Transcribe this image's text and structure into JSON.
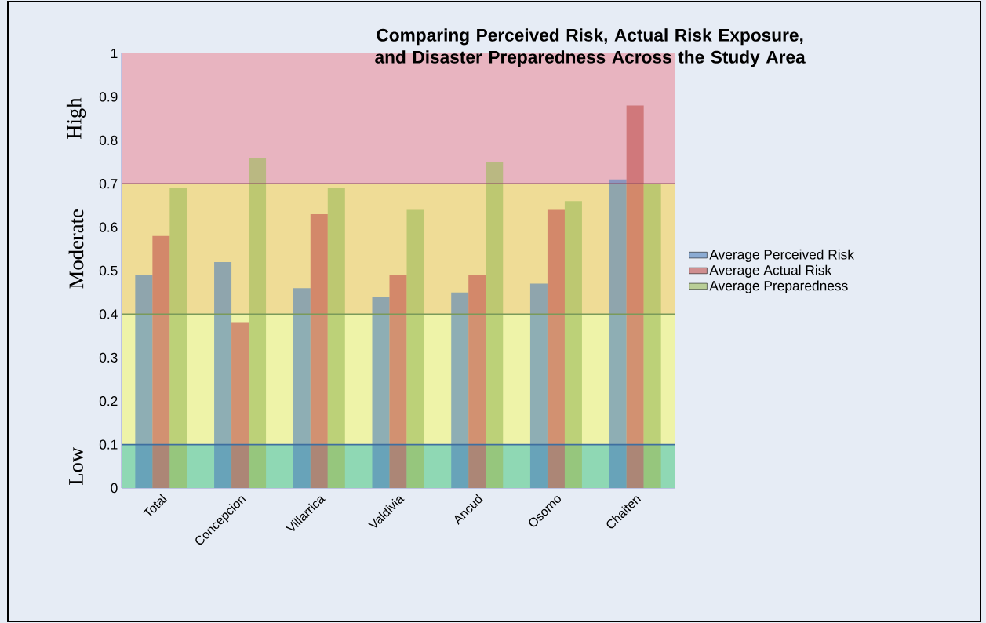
{
  "chart_data": {
    "type": "bar",
    "title": "Comparing Perceived Risk, Actual Risk Exposure, and Disaster Preparedness Across the Study Area",
    "categories": [
      "Total",
      "Concepcion",
      "Villarrica",
      "Valdivia",
      "Ancud",
      "Osorno",
      "Chaiten"
    ],
    "series": [
      {
        "name": "Average Perceived Risk",
        "color": "#4f81bd",
        "values": [
          0.49,
          0.52,
          0.46,
          0.44,
          0.45,
          0.47,
          0.71
        ]
      },
      {
        "name": "Average Actual Risk",
        "color": "#c0504d",
        "values": [
          0.58,
          0.38,
          0.63,
          0.49,
          0.49,
          0.64,
          0.88
        ]
      },
      {
        "name": "Average Preparedness",
        "color": "#9bbb59",
        "values": [
          0.69,
          0.76,
          0.69,
          0.64,
          0.75,
          0.66,
          0.7
        ]
      }
    ],
    "ylim": [
      0,
      1
    ],
    "yticks": [
      0,
      0.1,
      0.2,
      0.3,
      0.4,
      0.5,
      0.6,
      0.7,
      0.8,
      0.9,
      1
    ],
    "bands": [
      {
        "axis": "y",
        "from": 0,
        "to": 0.1,
        "label": "Low",
        "color": "#8fd8b4"
      },
      {
        "axis": "y",
        "from": 0.1,
        "to": 0.4,
        "color": "#eef3a8"
      },
      {
        "axis": "y",
        "from": 0.4,
        "to": 0.7,
        "label": "Moderate",
        "color": "#efdc96"
      },
      {
        "axis": "y",
        "from": 0.7,
        "to": 1,
        "label": "High",
        "color": "#e8b4c0"
      }
    ],
    "ref_lines": [
      {
        "axis": "y",
        "value": 0.1,
        "color": "#3f6fa0"
      },
      {
        "axis": "y",
        "value": 0.4,
        "color": "#7a9a5a"
      },
      {
        "axis": "y",
        "value": 0.7,
        "color": "#8a4a5a"
      }
    ],
    "legend": "right"
  }
}
